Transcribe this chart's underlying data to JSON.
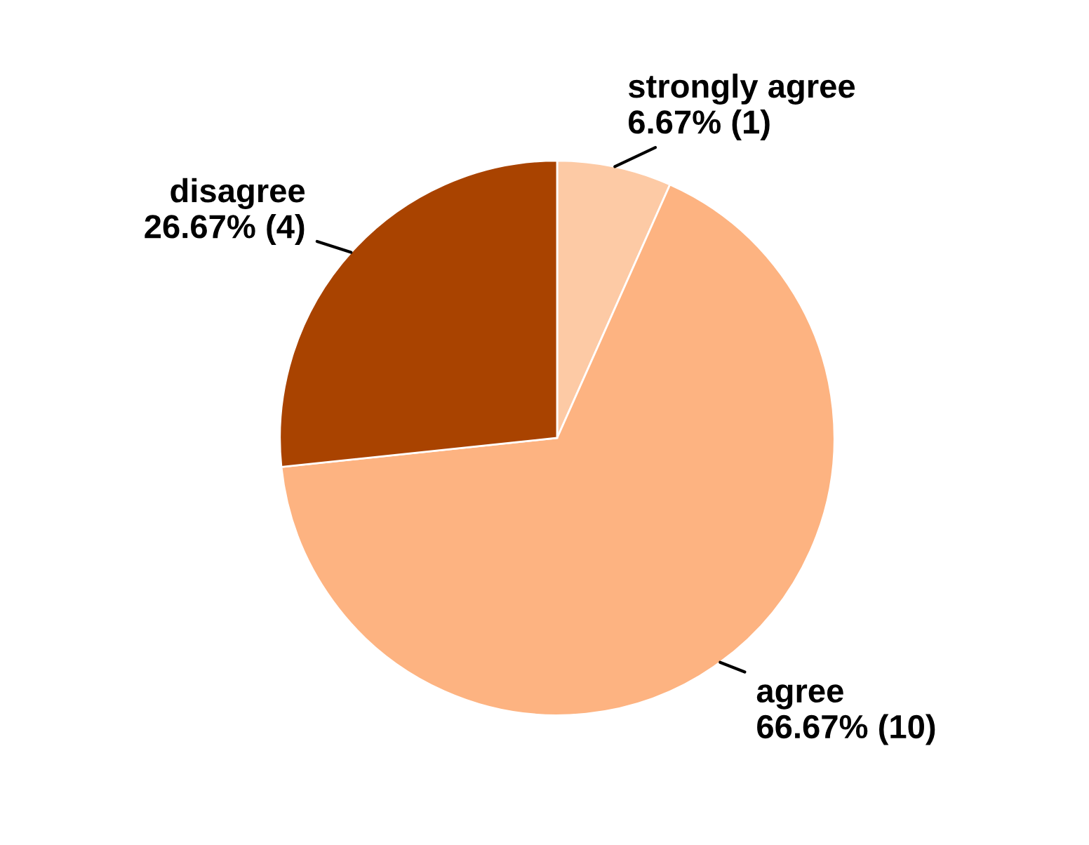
{
  "chart_data": {
    "type": "pie",
    "categories": [
      "strongly agree",
      "agree",
      "disagree"
    ],
    "values": [
      6.67,
      66.67,
      26.67
    ],
    "value_labels": [
      "6.67% (1)",
      "66.67% (10)",
      "26.67% (4)"
    ],
    "colors": [
      "#fdcaa5",
      "#fdb381",
      "#a94300"
    ]
  }
}
